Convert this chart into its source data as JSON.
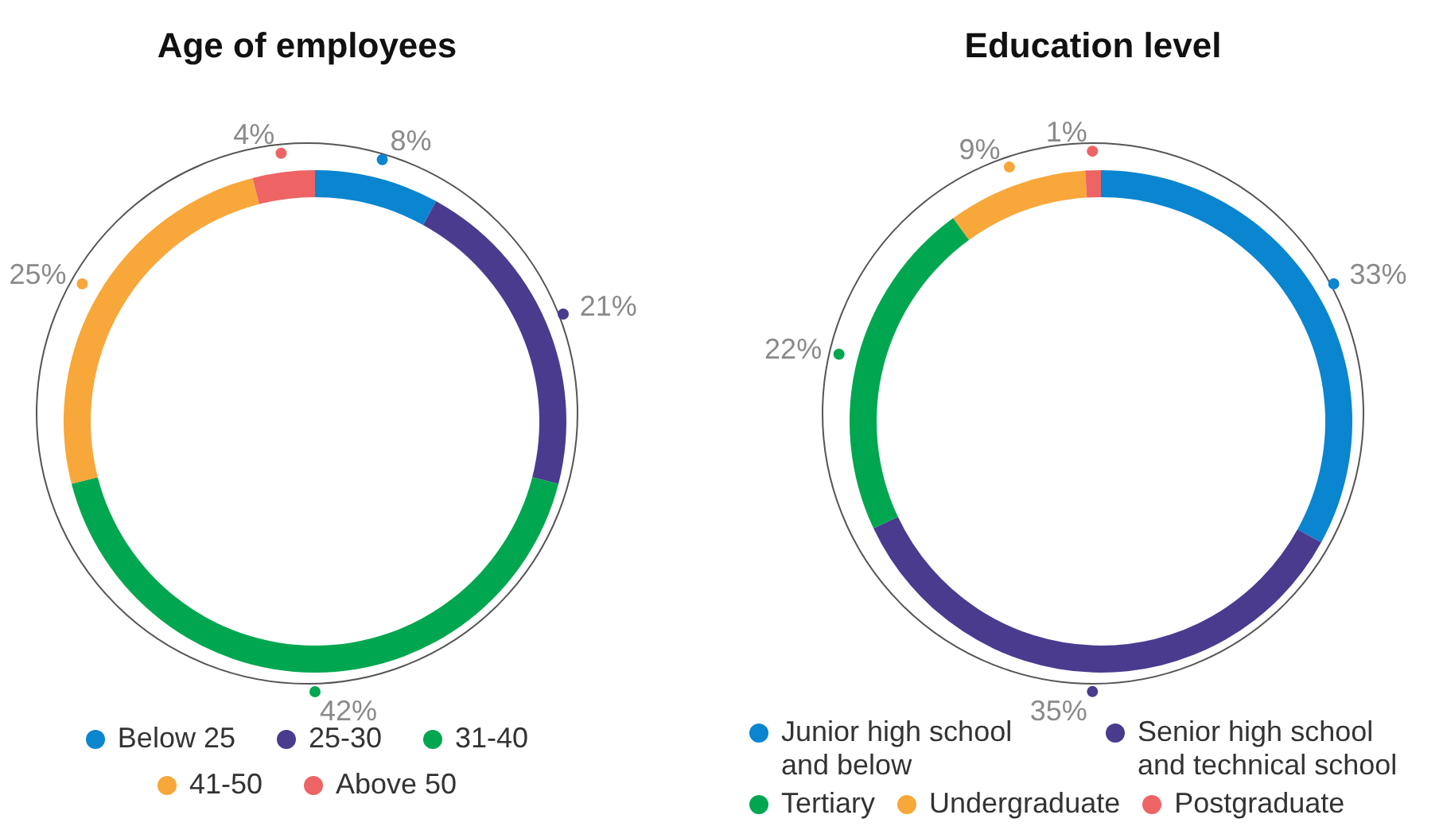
{
  "chart_data": [
    {
      "type": "donut",
      "title": "Age of employees",
      "categories": [
        "Below 25",
        "25-30",
        "31-40",
        "41-50",
        "Above 50"
      ],
      "values": [
        8,
        21,
        42,
        25,
        4
      ],
      "value_labels": [
        "8%",
        "21%",
        "42%",
        "25%",
        "4%"
      ],
      "colors": [
        "#0a85cf",
        "#4a3b8f",
        "#00a650",
        "#f8a73a",
        "#ee6464"
      ],
      "legend": "bottom"
    },
    {
      "type": "donut",
      "title": "Education level",
      "categories": [
        "Junior high school and below",
        "Senior high school and technical school",
        "Tertiary",
        "Undergraduate",
        "Postgraduate"
      ],
      "values": [
        33,
        35,
        22,
        9,
        1
      ],
      "value_labels": [
        "33%",
        "35%",
        "22%",
        "9%",
        "1%"
      ],
      "colors": [
        "#0a85cf",
        "#4a3b8f",
        "#00a650",
        "#f8a73a",
        "#ee6464"
      ],
      "legend": "bottom"
    }
  ]
}
